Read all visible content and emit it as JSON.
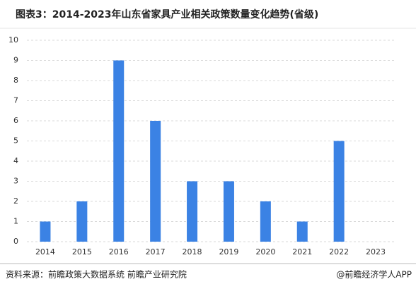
{
  "chart_data": {
    "type": "bar",
    "title": "图表3：2014-2023年山东省家具产业相关政策数量变化趋势(省级)",
    "categories": [
      "2014",
      "2015",
      "2016",
      "2017",
      "2018",
      "2019",
      "2020",
      "2021",
      "2022",
      "2023"
    ],
    "values": [
      1,
      2,
      9,
      6,
      3,
      3,
      2,
      1,
      5,
      0
    ],
    "color": "#3b82e4",
    "ylim": [
      0,
      10
    ],
    "yticks": [
      0,
      1,
      2,
      3,
      4,
      5,
      6,
      7,
      8,
      9,
      10
    ],
    "grid": true,
    "source": "资料来源：前瞻政策大数据系统 前瞻产业研究院",
    "credit": "@前瞻经济学人APP"
  }
}
